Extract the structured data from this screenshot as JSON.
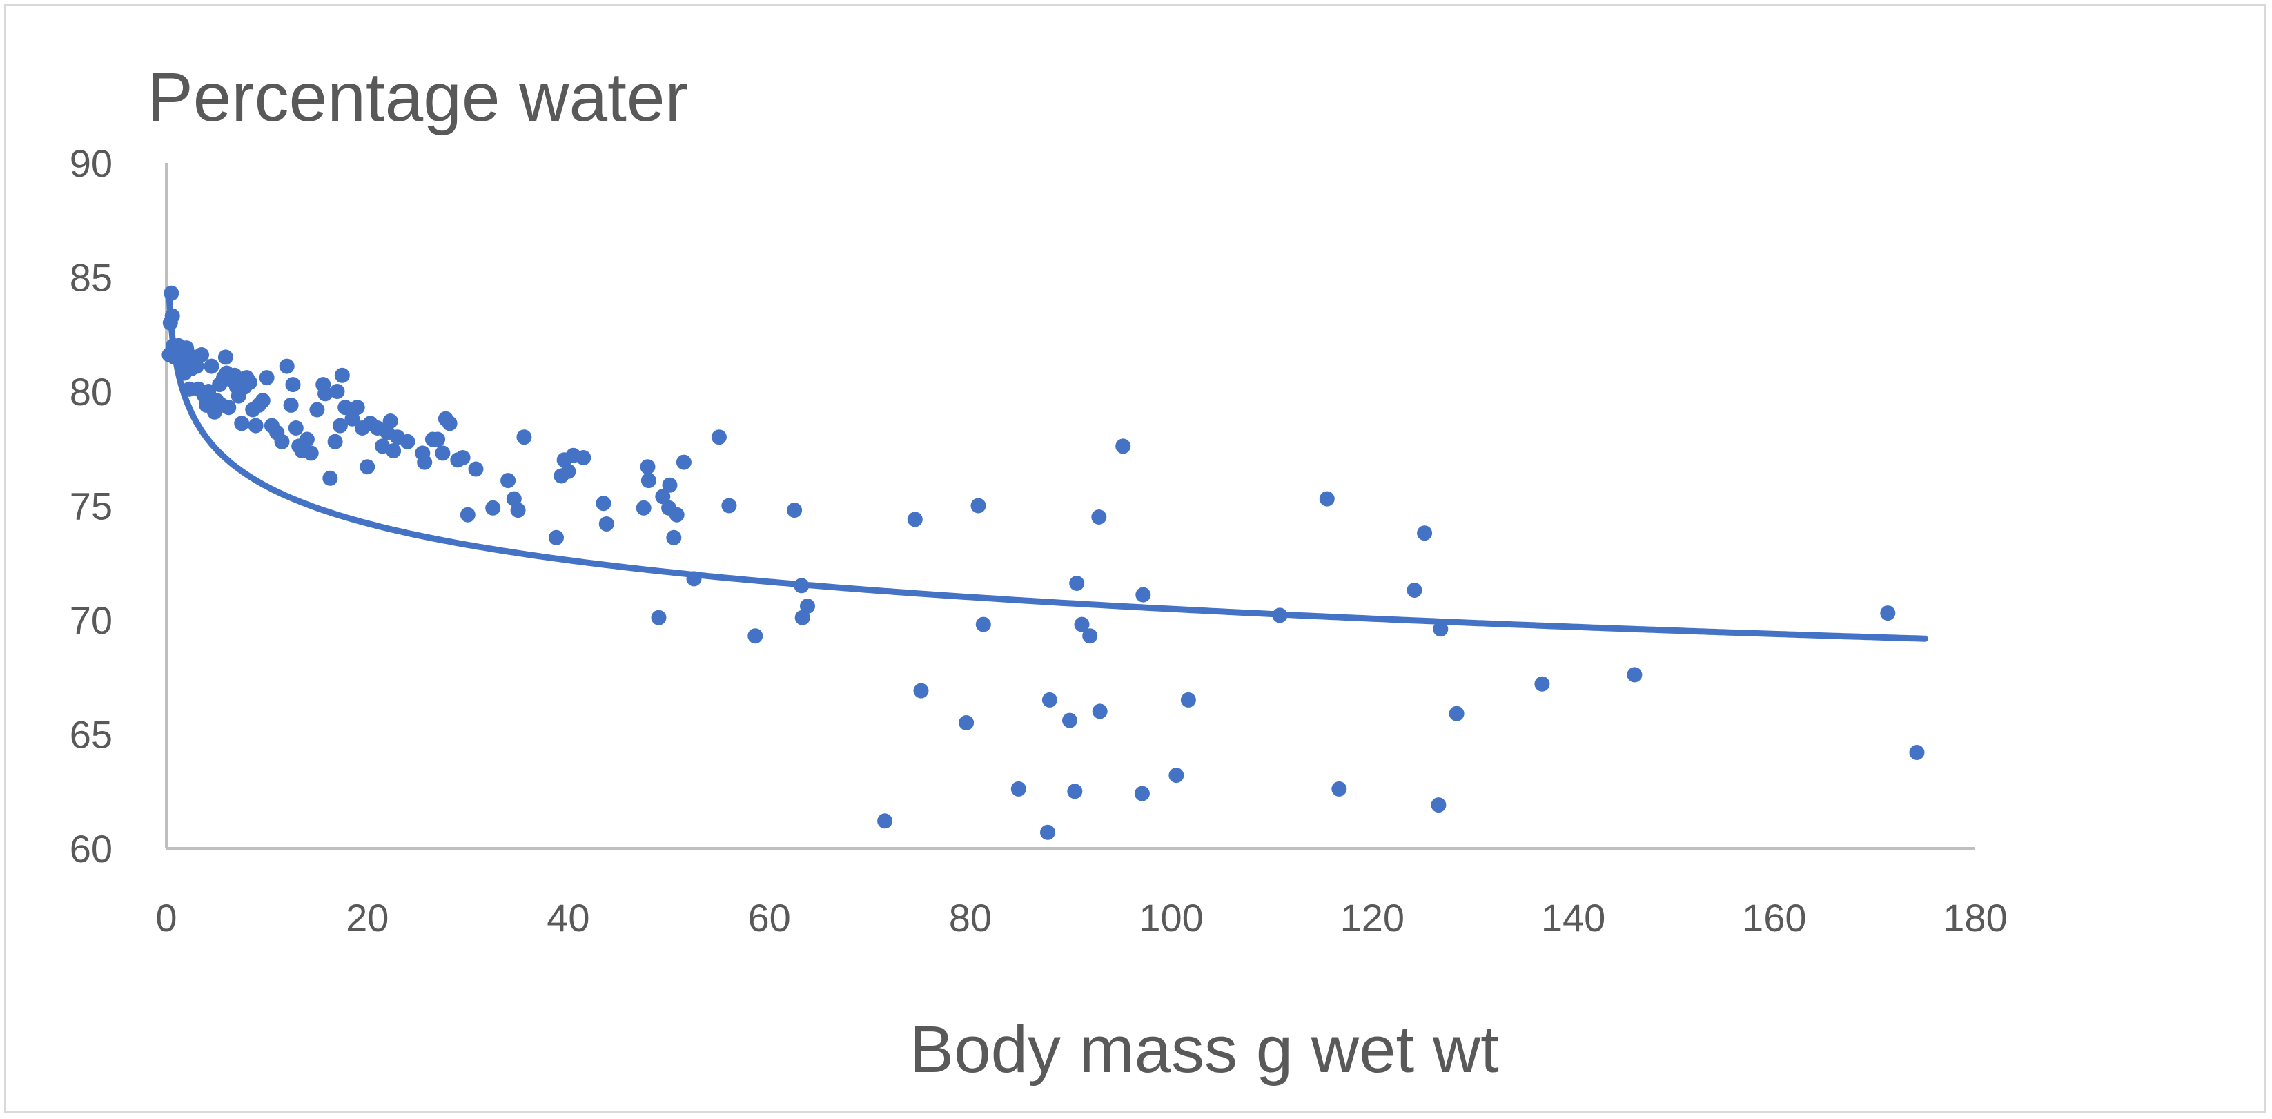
{
  "chart_data": {
    "type": "scatter",
    "title": "Percentage water",
    "xlabel": "Body mass g wet wt",
    "ylabel": "",
    "xlim": [
      0,
      180
    ],
    "ylim": [
      60,
      90
    ],
    "xticks": [
      0,
      20,
      40,
      60,
      80,
      100,
      120,
      140,
      160,
      180
    ],
    "yticks": [
      60,
      65,
      70,
      75,
      80,
      85,
      90
    ],
    "xtick_labels": [
      "0",
      "20",
      "40",
      "60",
      "80",
      "100",
      "120",
      "140",
      "160",
      "180"
    ],
    "ytick_labels": [
      "60",
      "65",
      "70",
      "75",
      "80",
      "85",
      "90"
    ],
    "grid": false,
    "legend": "none",
    "colors": {
      "series": "#4472c4",
      "axis": "#bfbfbf",
      "text": "#595959"
    },
    "trendline": {
      "type": "logarithmic",
      "equation": "y = 81.2 - 2.328*ln(x)",
      "x_range": [
        0.3,
        175
      ]
    },
    "series": [
      {
        "name": "Percentage water",
        "points": [
          [
            0.3,
            81.6
          ],
          [
            0.4,
            83.0
          ],
          [
            0.5,
            84.3
          ],
          [
            0.6,
            83.3
          ],
          [
            0.7,
            82.0
          ],
          [
            0.8,
            81.5
          ],
          [
            1.0,
            81.8
          ],
          [
            1.2,
            82.0
          ],
          [
            1.5,
            81.2
          ],
          [
            1.7,
            81.6
          ],
          [
            1.8,
            80.8
          ],
          [
            2.0,
            81.9
          ],
          [
            2.2,
            81.4
          ],
          [
            2.3,
            80.1
          ],
          [
            2.5,
            81.0
          ],
          [
            2.8,
            81.5
          ],
          [
            3.0,
            81.1
          ],
          [
            3.2,
            80.1
          ],
          [
            3.5,
            81.6
          ],
          [
            3.8,
            79.8
          ],
          [
            4.0,
            79.4
          ],
          [
            4.2,
            80.0
          ],
          [
            4.5,
            81.1
          ],
          [
            4.8,
            79.1
          ],
          [
            5.0,
            79.6
          ],
          [
            5.3,
            80.3
          ],
          [
            5.5,
            79.4
          ],
          [
            5.7,
            80.6
          ],
          [
            5.9,
            81.5
          ],
          [
            6.0,
            80.8
          ],
          [
            6.2,
            79.3
          ],
          [
            6.5,
            80.5
          ],
          [
            6.8,
            80.7
          ],
          [
            7.0,
            80.2
          ],
          [
            7.2,
            79.8
          ],
          [
            7.5,
            78.6
          ],
          [
            7.8,
            80.2
          ],
          [
            8.0,
            80.6
          ],
          [
            8.3,
            80.4
          ],
          [
            8.6,
            79.2
          ],
          [
            8.9,
            78.5
          ],
          [
            9.2,
            79.4
          ],
          [
            9.6,
            79.6
          ],
          [
            10.0,
            80.6
          ],
          [
            10.5,
            78.5
          ],
          [
            11.0,
            78.2
          ],
          [
            11.5,
            77.8
          ],
          [
            12.0,
            81.1
          ],
          [
            12.4,
            79.4
          ],
          [
            12.6,
            80.3
          ],
          [
            12.9,
            78.4
          ],
          [
            13.2,
            77.6
          ],
          [
            13.5,
            77.4
          ],
          [
            14.0,
            77.9
          ],
          [
            14.4,
            77.3
          ],
          [
            15.0,
            79.2
          ],
          [
            15.6,
            80.3
          ],
          [
            15.8,
            79.9
          ],
          [
            16.3,
            76.2
          ],
          [
            16.8,
            77.8
          ],
          [
            17.0,
            80.0
          ],
          [
            17.3,
            78.5
          ],
          [
            17.5,
            80.7
          ],
          [
            17.8,
            79.3
          ],
          [
            18.5,
            78.8
          ],
          [
            19.0,
            79.3
          ],
          [
            19.5,
            78.4
          ],
          [
            20.0,
            76.7
          ],
          [
            20.3,
            78.6
          ],
          [
            21.0,
            78.4
          ],
          [
            21.5,
            77.6
          ],
          [
            22.0,
            78.2
          ],
          [
            22.3,
            78.7
          ],
          [
            22.6,
            77.4
          ],
          [
            23.0,
            78.0
          ],
          [
            24.0,
            77.8
          ],
          [
            25.5,
            77.3
          ],
          [
            25.7,
            76.9
          ],
          [
            26.5,
            77.9
          ],
          [
            27.0,
            77.9
          ],
          [
            27.5,
            77.3
          ],
          [
            27.8,
            78.8
          ],
          [
            28.2,
            78.6
          ],
          [
            29.0,
            77.0
          ],
          [
            29.5,
            77.1
          ],
          [
            30.0,
            74.6
          ],
          [
            30.8,
            76.6
          ],
          [
            32.5,
            74.9
          ],
          [
            34.0,
            76.1
          ],
          [
            34.6,
            75.3
          ],
          [
            35.0,
            74.8
          ],
          [
            35.6,
            78.0
          ],
          [
            38.8,
            73.6
          ],
          [
            39.3,
            76.3
          ],
          [
            39.6,
            77.0
          ],
          [
            40.0,
            76.5
          ],
          [
            40.5,
            77.2
          ],
          [
            41.5,
            77.1
          ],
          [
            43.5,
            75.1
          ],
          [
            43.8,
            74.2
          ],
          [
            47.5,
            74.9
          ],
          [
            47.9,
            76.7
          ],
          [
            48.0,
            76.1
          ],
          [
            49.0,
            70.1
          ],
          [
            49.4,
            75.4
          ],
          [
            50.0,
            74.9
          ],
          [
            50.1,
            75.9
          ],
          [
            50.5,
            73.6
          ],
          [
            50.8,
            74.6
          ],
          [
            51.5,
            76.9
          ],
          [
            52.5,
            71.8
          ],
          [
            55.0,
            78.0
          ],
          [
            56.0,
            75.0
          ],
          [
            58.6,
            69.3
          ],
          [
            62.5,
            74.8
          ],
          [
            63.2,
            71.5
          ],
          [
            63.3,
            70.1
          ],
          [
            63.8,
            70.6
          ],
          [
            71.5,
            61.2
          ],
          [
            74.5,
            74.4
          ],
          [
            75.1,
            66.9
          ],
          [
            79.6,
            65.5
          ],
          [
            80.8,
            75.0
          ],
          [
            81.3,
            69.8
          ],
          [
            84.8,
            62.6
          ],
          [
            87.7,
            60.7
          ],
          [
            87.9,
            66.5
          ],
          [
            89.9,
            65.6
          ],
          [
            90.4,
            62.5
          ],
          [
            90.6,
            71.6
          ],
          [
            91.1,
            69.8
          ],
          [
            91.9,
            69.3
          ],
          [
            92.8,
            74.5
          ],
          [
            92.9,
            66.0
          ],
          [
            95.2,
            77.6
          ],
          [
            97.1,
            62.4
          ],
          [
            97.2,
            71.1
          ],
          [
            100.5,
            63.2
          ],
          [
            101.7,
            66.5
          ],
          [
            110.8,
            70.2
          ],
          [
            115.5,
            75.3
          ],
          [
            116.7,
            62.6
          ],
          [
            124.2,
            71.3
          ],
          [
            125.2,
            73.8
          ],
          [
            126.6,
            61.9
          ],
          [
            126.8,
            69.6
          ],
          [
            128.4,
            65.9
          ],
          [
            136.9,
            67.2
          ],
          [
            146.1,
            67.6
          ],
          [
            171.3,
            70.3
          ],
          [
            174.2,
            64.2
          ]
        ]
      }
    ]
  }
}
